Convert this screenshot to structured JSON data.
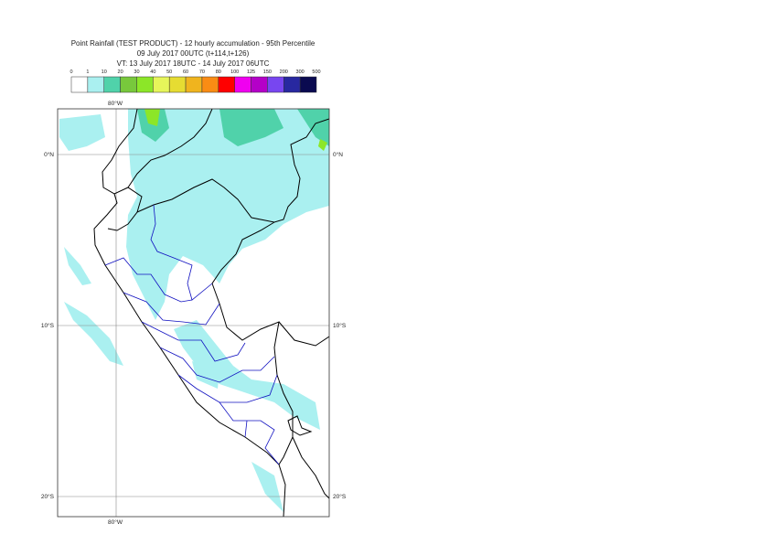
{
  "header": {
    "title": "Point Rainfall (TEST PRODUCT) - 12 hourly accumulation - 95th Percentile",
    "subtitle": "09 July 2017 00UTC (t+114,t+126)",
    "valid_time": "VT: 13 July 2017 18UTC - 14 July 2017 06UTC"
  },
  "legend": {
    "labels": [
      0,
      1,
      10,
      20,
      30,
      40,
      50,
      60,
      70,
      80,
      100,
      125,
      150,
      200,
      300,
      500
    ],
    "colors": [
      "#ffffff",
      "#aaf0f0",
      "#50d2aa",
      "#78c83c",
      "#8ce628",
      "#e6f55a",
      "#e6dc32",
      "#f0b41e",
      "#fa8c14",
      "#ff0000",
      "#f000f0",
      "#b400c8",
      "#7846f0",
      "#2828a0",
      "#0a0a50"
    ]
  },
  "map": {
    "lon_labels": [
      "80°W"
    ],
    "lat_labels": [
      "0°N",
      "10°S",
      "20°S"
    ]
  }
}
